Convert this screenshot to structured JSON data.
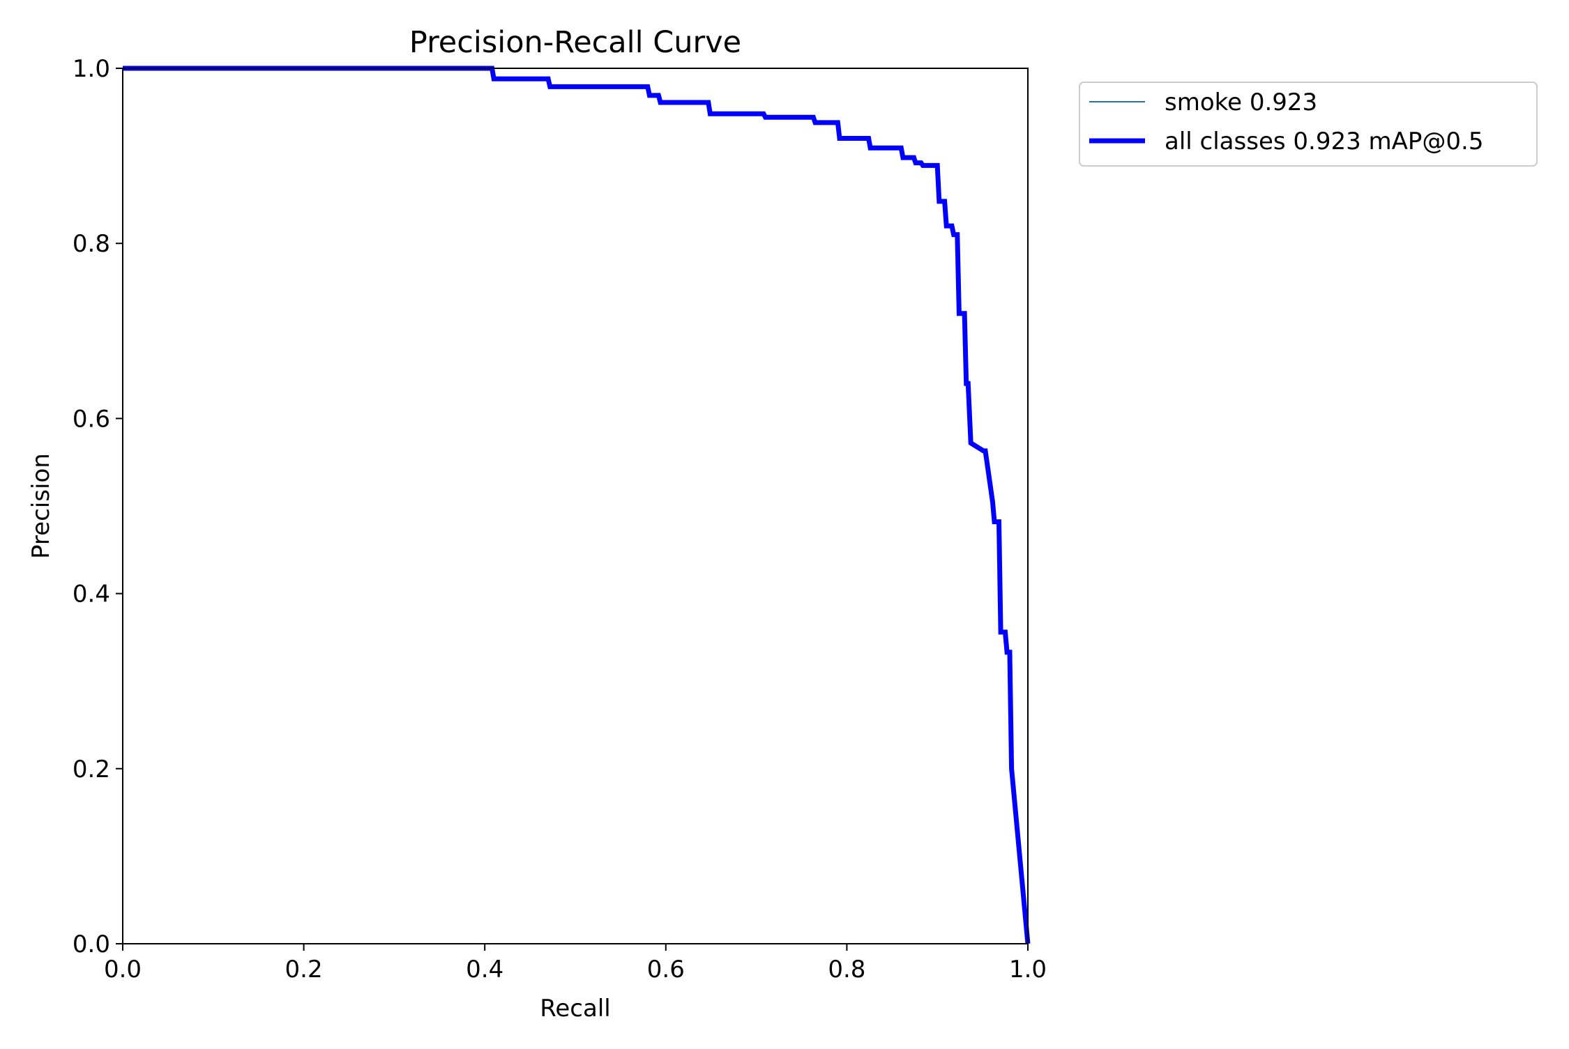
{
  "chart_data": {
    "type": "line",
    "title": "Precision-Recall Curve",
    "xlabel": "Recall",
    "ylabel": "Precision",
    "xlim": [
      0,
      1
    ],
    "ylim": [
      0,
      1
    ],
    "grid": false,
    "legend_placement": "outside upper-right",
    "x_ticks": [
      "0.0",
      "0.2",
      "0.4",
      "0.6",
      "0.8",
      "1.0"
    ],
    "y_ticks": [
      "0.0",
      "0.2",
      "0.4",
      "0.6",
      "0.8",
      "1.0"
    ],
    "series": [
      {
        "name": "smoke 0.923",
        "color": "#1f77b4",
        "style": "thin",
        "x": [
          0.0,
          0.408,
          0.41,
          0.47,
          0.472,
          0.58,
          0.582,
          0.592,
          0.594,
          0.647,
          0.649,
          0.708,
          0.71,
          0.763,
          0.765,
          0.79,
          0.792,
          0.824,
          0.826,
          0.86,
          0.862,
          0.874,
          0.876,
          0.882,
          0.884,
          0.9,
          0.902,
          0.908,
          0.91,
          0.916,
          0.918,
          0.922,
          0.924,
          0.93,
          0.932,
          0.934,
          0.937,
          0.951,
          0.953,
          0.961,
          0.963,
          0.968,
          0.97,
          0.975,
          0.977,
          0.98,
          0.982,
          1.0
        ],
        "y": [
          1.0,
          1.0,
          0.988,
          0.988,
          0.979,
          0.979,
          0.969,
          0.969,
          0.961,
          0.961,
          0.948,
          0.948,
          0.944,
          0.944,
          0.938,
          0.938,
          0.92,
          0.92,
          0.909,
          0.909,
          0.898,
          0.898,
          0.892,
          0.892,
          0.889,
          0.889,
          0.848,
          0.848,
          0.82,
          0.82,
          0.81,
          0.81,
          0.72,
          0.72,
          0.64,
          0.64,
          0.572,
          0.563,
          0.563,
          0.505,
          0.482,
          0.482,
          0.356,
          0.356,
          0.333,
          0.333,
          0.2,
          0.0
        ]
      },
      {
        "name": "all classes 0.923 mAP@0.5",
        "color": "#0000ff",
        "style": "thick",
        "x": [
          0.0,
          0.408,
          0.41,
          0.47,
          0.472,
          0.58,
          0.582,
          0.592,
          0.594,
          0.647,
          0.649,
          0.708,
          0.71,
          0.763,
          0.765,
          0.79,
          0.792,
          0.824,
          0.826,
          0.86,
          0.862,
          0.874,
          0.876,
          0.882,
          0.884,
          0.9,
          0.902,
          0.908,
          0.91,
          0.916,
          0.918,
          0.922,
          0.924,
          0.93,
          0.932,
          0.934,
          0.937,
          0.951,
          0.953,
          0.961,
          0.963,
          0.968,
          0.97,
          0.975,
          0.977,
          0.98,
          0.982,
          1.0
        ],
        "y": [
          1.0,
          1.0,
          0.988,
          0.988,
          0.979,
          0.979,
          0.969,
          0.969,
          0.961,
          0.961,
          0.948,
          0.948,
          0.944,
          0.944,
          0.938,
          0.938,
          0.92,
          0.92,
          0.909,
          0.909,
          0.898,
          0.898,
          0.892,
          0.892,
          0.889,
          0.889,
          0.848,
          0.848,
          0.82,
          0.82,
          0.81,
          0.81,
          0.72,
          0.72,
          0.64,
          0.64,
          0.572,
          0.563,
          0.563,
          0.505,
          0.482,
          0.482,
          0.356,
          0.356,
          0.333,
          0.333,
          0.2,
          0.0
        ]
      }
    ]
  }
}
